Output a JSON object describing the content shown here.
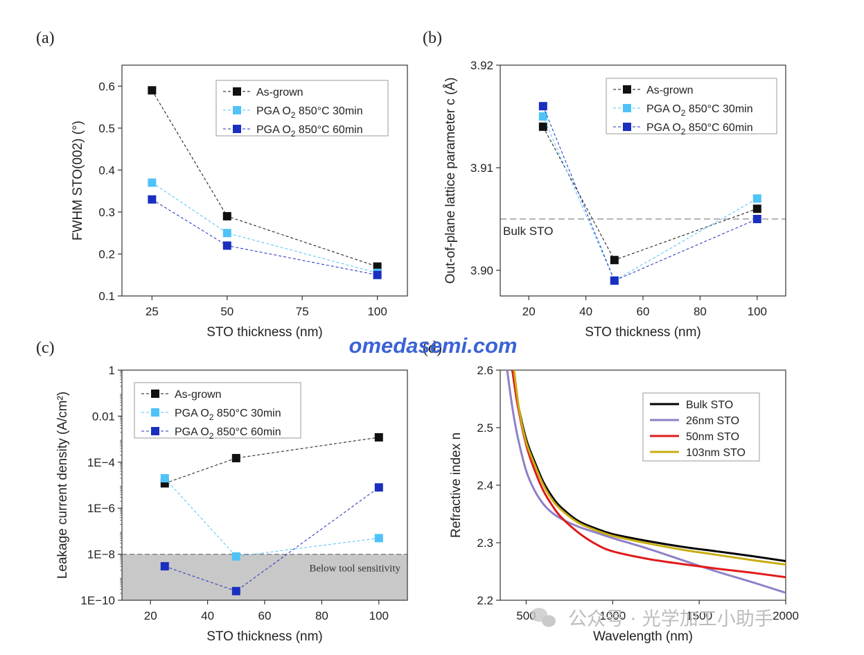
{
  "colors": {
    "as_grown": "#111111",
    "pga30": "#4fc3f7",
    "pga60": "#1a2fbf",
    "bulk_sto": "#000000",
    "sto26": "#8e80c8",
    "sto50": "#e01b1b",
    "sto103": "#c8ad14",
    "shade": "#c8c8c8",
    "watermark_blue": "#3b63d6"
  },
  "watermark": {
    "site": "omedasemi.com",
    "wechat": "公众号 · 光学加工小助手",
    "wechat_icon": "wechat-icon"
  },
  "chart_data": [
    {
      "panel": "(a)",
      "type": "scatter",
      "xlabel": "STO thickness (nm)",
      "ylabel": "FWHM STO(002) (°)",
      "xlim": [
        15,
        110
      ],
      "ylim": [
        0.1,
        0.65
      ],
      "xticks": [
        25,
        50,
        75,
        100
      ],
      "xtick_labels": [
        "25",
        "50",
        "75",
        "100"
      ],
      "yticks": [
        0.1,
        0.2,
        0.3,
        0.4,
        0.5,
        0.6
      ],
      "ytick_labels": [
        "0.1",
        "0.2",
        "0.3",
        "0.4",
        "0.5",
        "0.6"
      ],
      "x": [
        25,
        50,
        100
      ],
      "series": [
        {
          "name": "As-grown",
          "key": "as_grown",
          "values": [
            0.59,
            0.29,
            0.17
          ]
        },
        {
          "name": "PGA O2 850°C 30min",
          "key": "pga30",
          "label_pre": "PGA O",
          "label_sub": "2",
          "label_post": " 850°C 30min",
          "values": [
            0.37,
            0.25,
            0.155
          ]
        },
        {
          "name": "PGA O2 850°C 60min",
          "key": "pga60",
          "label_pre": "PGA O",
          "label_sub": "2",
          "label_post": " 850°C 60min",
          "values": [
            0.33,
            0.22,
            0.15
          ]
        }
      ],
      "legend": "top-right"
    },
    {
      "panel": "(b)",
      "type": "scatter",
      "xlabel": "STO thickness (nm)",
      "ylabel": "Out-of-plane lattice parameter c (Å)",
      "xlim": [
        10,
        110
      ],
      "ylim": [
        3.8975,
        3.92
      ],
      "xticks": [
        20,
        40,
        60,
        80,
        100
      ],
      "xtick_labels": [
        "20",
        "40",
        "60",
        "80",
        "100"
      ],
      "yticks": [
        3.9,
        3.91,
        3.92
      ],
      "ytick_labels": [
        "3.90",
        "3.91",
        "3.92"
      ],
      "x": [
        25,
        50,
        100
      ],
      "series": [
        {
          "name": "As-grown",
          "key": "as_grown",
          "values": [
            3.914,
            3.901,
            3.906
          ]
        },
        {
          "name": "PGA O2 850°C 30min",
          "key": "pga30",
          "label_pre": "PGA O",
          "label_sub": "2",
          "label_post": " 850°C 30min",
          "values": [
            3.915,
            3.899,
            3.907
          ]
        },
        {
          "name": "PGA O2 850°C 60min",
          "key": "pga60",
          "label_pre": "PGA O",
          "label_sub": "2",
          "label_post": " 850°C 60min",
          "values": [
            3.916,
            3.899,
            3.905
          ]
        }
      ],
      "reference_line": {
        "label": "Bulk STO",
        "value": 3.905
      },
      "legend": "top-right"
    },
    {
      "panel": "(c)",
      "type": "scatter",
      "yscale": "log",
      "xlabel": "STO thickness (nm)",
      "ylabel": "Leakage current density (A/cm²)",
      "xlim": [
        10,
        110
      ],
      "ylim": [
        1e-10,
        1
      ],
      "xticks": [
        20,
        40,
        60,
        80,
        100
      ],
      "xtick_labels": [
        "20",
        "40",
        "60",
        "80",
        "100"
      ],
      "yticks": [
        1e-10,
        1e-08,
        1e-06,
        0.0001,
        0.01,
        1
      ],
      "ytick_labels": [
        "1E−10",
        "1E−8",
        "1E−6",
        "1E−4",
        "0.01",
        "1"
      ],
      "x": [
        25,
        50,
        100
      ],
      "series": [
        {
          "name": "As-grown",
          "key": "as_grown",
          "values": [
            1.2e-05,
            0.00015,
            0.0012
          ]
        },
        {
          "name": "PGA O2 850°C 30min",
          "key": "pga30",
          "label_pre": "PGA O",
          "label_sub": "2",
          "label_post": " 850°C 30min",
          "values": [
            2e-05,
            8e-09,
            5e-08
          ]
        },
        {
          "name": "PGA O2 850°C 60min",
          "key": "pga60",
          "label_pre": "PGA O",
          "label_sub": "2",
          "label_post": " 850°C 60min",
          "values": [
            3e-09,
            2.5e-10,
            8e-06
          ]
        }
      ],
      "shaded_region": {
        "label": "Below tool sensitivity",
        "from": 1e-10,
        "to": 1e-08
      },
      "legend": "top-left"
    },
    {
      "panel": "(d)",
      "type": "line",
      "xlabel": "Wavelength (nm)",
      "ylabel": "Refractive index n",
      "xlim": [
        350,
        2000
      ],
      "ylim": [
        2.2,
        2.6
      ],
      "xticks": [
        500,
        1000,
        1500,
        2000
      ],
      "xtick_labels": [
        "500",
        "1000",
        "1500",
        "2000"
      ],
      "yticks": [
        2.2,
        2.3,
        2.4,
        2.5,
        2.6
      ],
      "ytick_labels": [
        "2.2",
        "2.3",
        "2.4",
        "2.5",
        "2.6"
      ],
      "series": [
        {
          "name": "Bulk STO",
          "key": "bulk_sto",
          "x": [
            420,
            450,
            500,
            550,
            600,
            650,
            700,
            800,
            900,
            1000,
            1200,
            1400,
            1600,
            1800,
            2000
          ],
          "values": [
            2.6,
            2.545,
            2.48,
            2.44,
            2.405,
            2.38,
            2.362,
            2.338,
            2.325,
            2.315,
            2.303,
            2.293,
            2.285,
            2.277,
            2.268
          ]
        },
        {
          "name": "26nm STO",
          "key": "sto26",
          "x": [
            390,
            420,
            450,
            500,
            550,
            600,
            650,
            700,
            800,
            900,
            1000,
            1200,
            1400,
            1600,
            1800,
            2000
          ],
          "values": [
            2.6,
            2.535,
            2.485,
            2.425,
            2.39,
            2.367,
            2.352,
            2.342,
            2.328,
            2.318,
            2.308,
            2.29,
            2.27,
            2.25,
            2.232,
            2.213
          ]
        },
        {
          "name": "50nm STO",
          "key": "sto50",
          "x": [
            420,
            450,
            500,
            550,
            600,
            650,
            700,
            800,
            900,
            1000,
            1200,
            1400,
            1600,
            1800,
            2000
          ],
          "values": [
            2.6,
            2.54,
            2.47,
            2.425,
            2.39,
            2.365,
            2.345,
            2.318,
            2.298,
            2.285,
            2.272,
            2.263,
            2.255,
            2.248,
            2.24
          ]
        },
        {
          "name": "103nm STO",
          "key": "sto103",
          "x": [
            430,
            460,
            500,
            550,
            600,
            650,
            700,
            800,
            900,
            1000,
            1200,
            1400,
            1600,
            1800,
            2000
          ],
          "values": [
            2.6,
            2.53,
            2.475,
            2.435,
            2.4,
            2.375,
            2.358,
            2.335,
            2.322,
            2.312,
            2.299,
            2.288,
            2.279,
            2.27,
            2.262
          ]
        }
      ],
      "legend": "top-right"
    }
  ]
}
